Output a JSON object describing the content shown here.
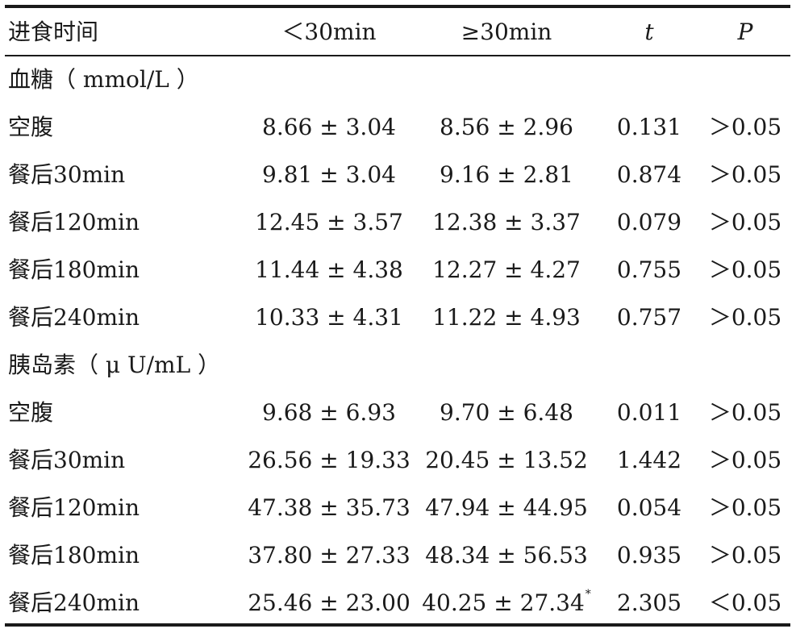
{
  "header": {
    "col0": "进食时间",
    "col1": "＜30min",
    "col2": "≥30min",
    "col3": "t",
    "col4": "P"
  },
  "sections": [
    {
      "title": "血糖（ mmol/L ）",
      "rows": [
        {
          "label": "空腹",
          "a": "8.66 ± 3.04",
          "b": "8.56 ± 2.96",
          "b_mark": "",
          "t": "0.131",
          "p": "＞0.05"
        },
        {
          "label": "餐后30min",
          "a": "9.81 ± 3.04",
          "b": "9.16 ± 2.81",
          "b_mark": "",
          "t": "0.874",
          "p": "＞0.05"
        },
        {
          "label": "餐后120min",
          "a": "12.45 ± 3.57",
          "b": "12.38 ± 3.37",
          "b_mark": "",
          "t": "0.079",
          "p": "＞0.05"
        },
        {
          "label": "餐后180min",
          "a": "11.44 ± 4.38",
          "b": "12.27 ± 4.27",
          "b_mark": "",
          "t": "0.755",
          "p": "＞0.05"
        },
        {
          "label": "餐后240min",
          "a": "10.33 ± 4.31",
          "b": "11.22 ± 4.93",
          "b_mark": "",
          "t": "0.757",
          "p": "＞0.05"
        }
      ]
    },
    {
      "title": "胰岛素（ μ U/mL ）",
      "rows": [
        {
          "label": "空腹",
          "a": "9.68 ± 6.93",
          "b": "9.70 ± 6.48",
          "b_mark": "",
          "t": "0.011",
          "p": "＞0.05"
        },
        {
          "label": "餐后30min",
          "a": "26.56 ± 19.33",
          "b": "20.45 ± 13.52",
          "b_mark": "",
          "t": "1.442",
          "p": "＞0.05"
        },
        {
          "label": "餐后120min",
          "a": "47.38 ± 35.73",
          "b": "47.94 ± 44.95",
          "b_mark": "",
          "t": "0.054",
          "p": "＞0.05"
        },
        {
          "label": "餐后180min",
          "a": "37.80 ± 27.33",
          "b": "48.34 ± 56.53",
          "b_mark": "",
          "t": "0.935",
          "p": "＞0.05"
        },
        {
          "label": "餐后240min",
          "a": "25.46 ± 23.00",
          "b": "40.25 ± 27.34",
          "b_mark": "*",
          "t": "2.305",
          "p": "＜0.05"
        }
      ]
    }
  ]
}
